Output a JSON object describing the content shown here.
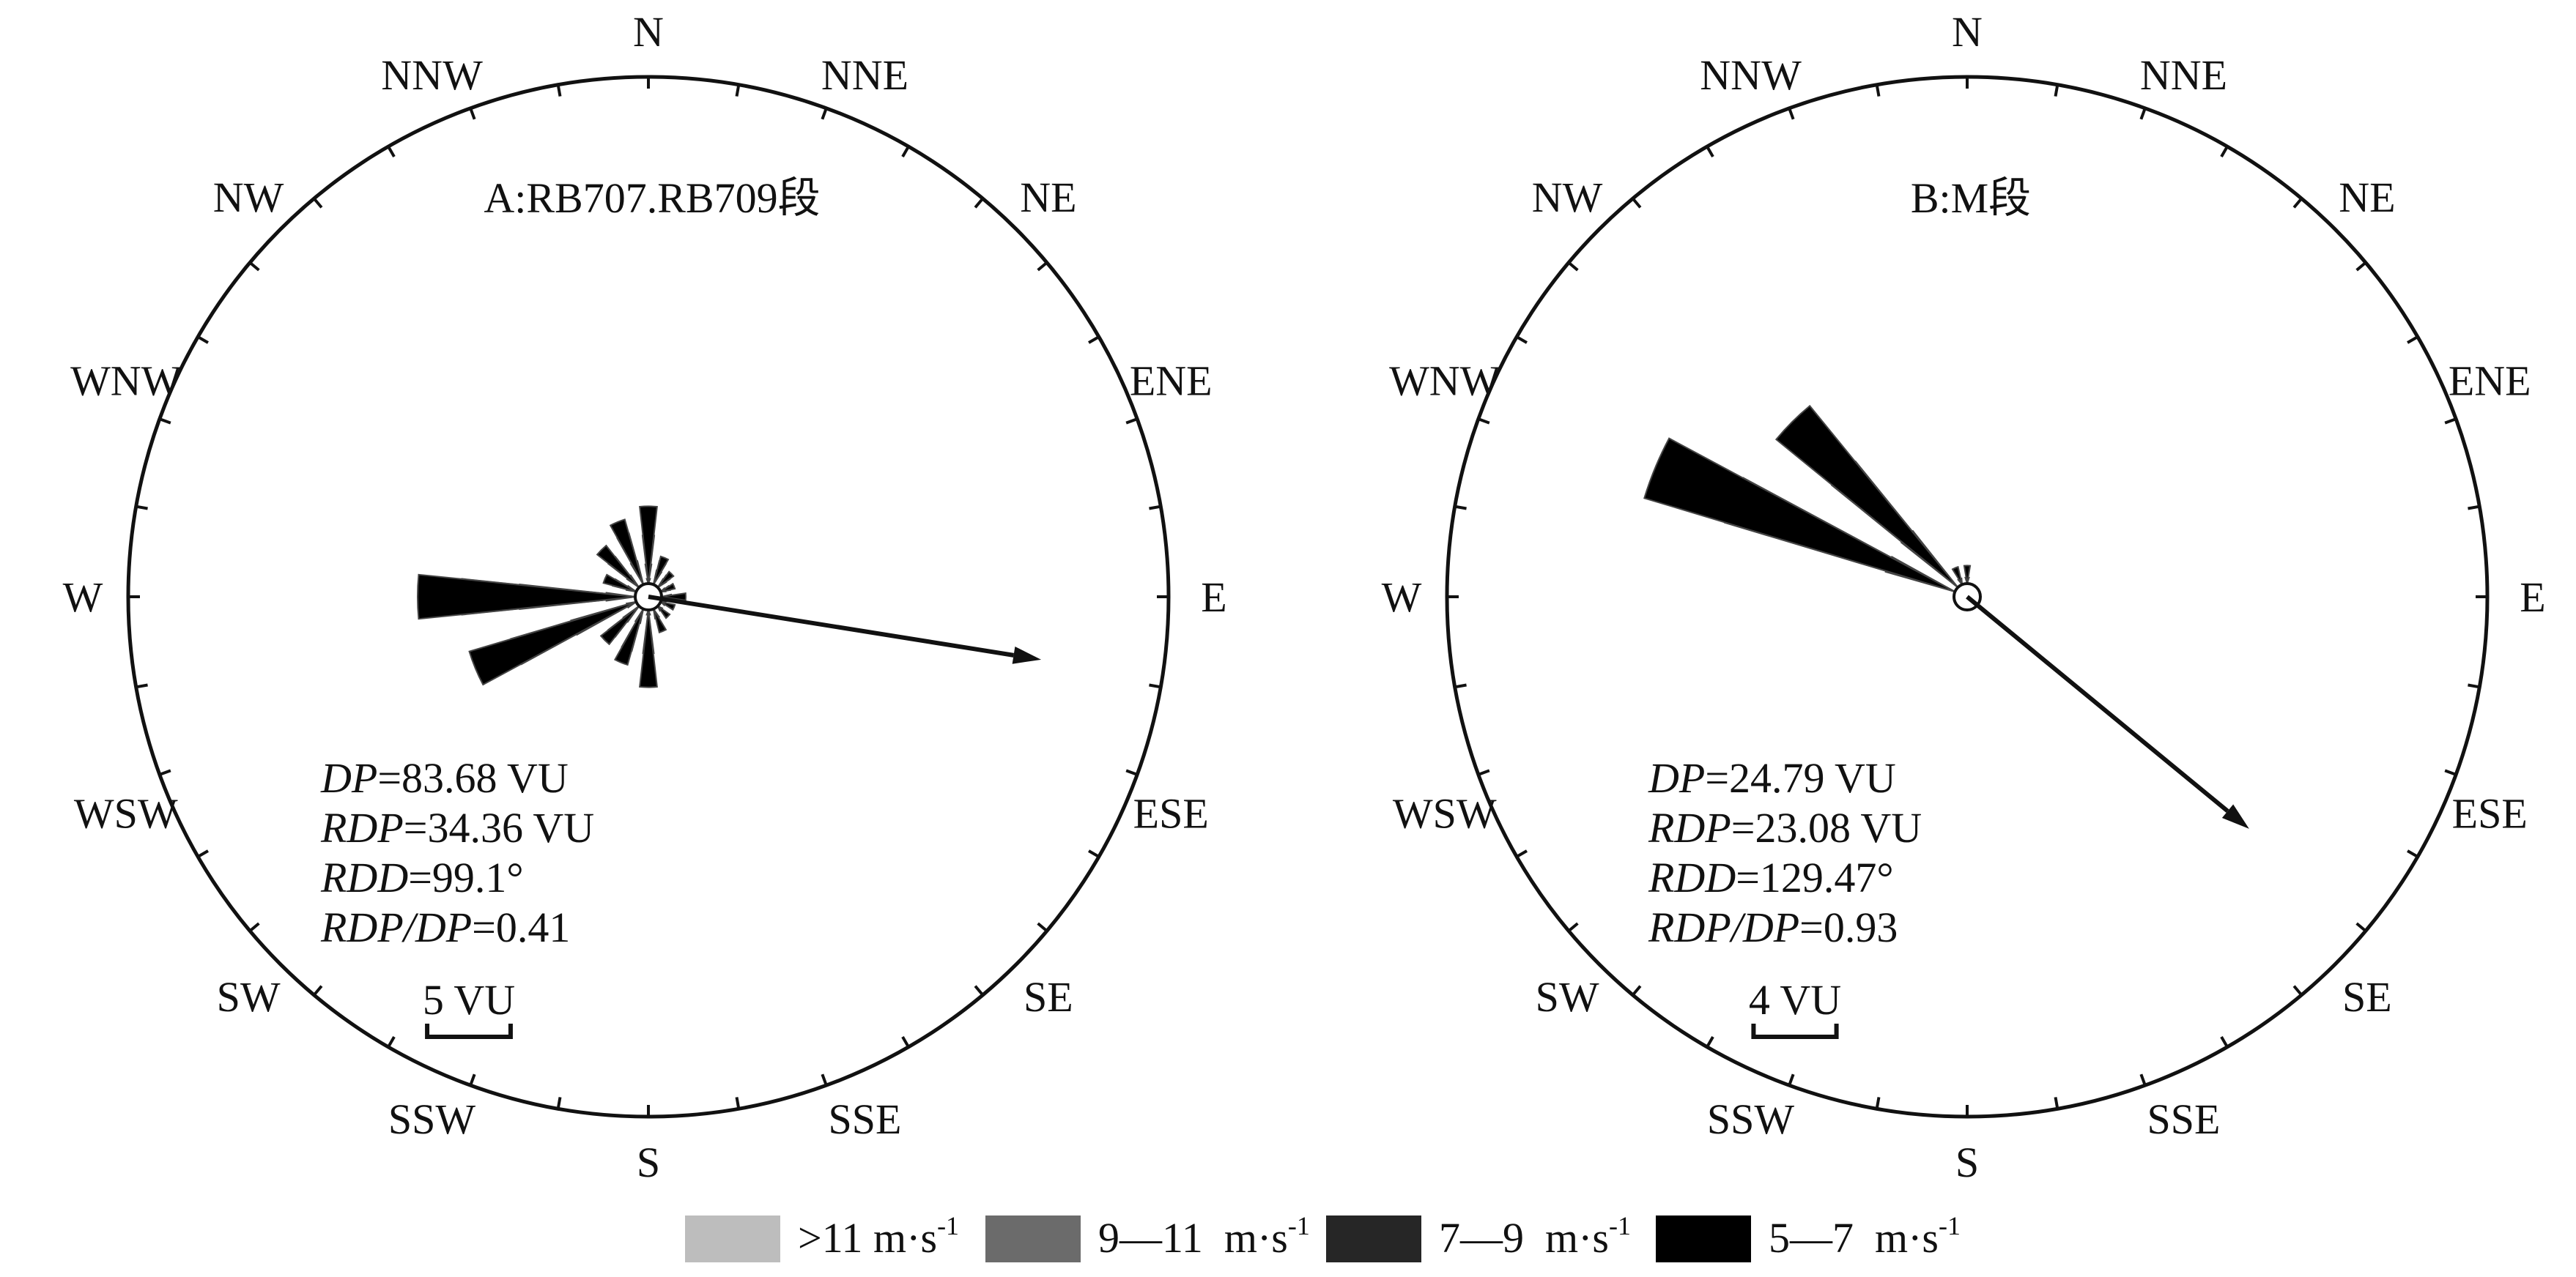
{
  "chart_data": [
    {
      "type": "wind-rose",
      "title": "A:RB707.RB709段",
      "directions": [
        "N",
        "NNE",
        "NE",
        "ENE",
        "E",
        "ESE",
        "SE",
        "SSE",
        "S",
        "SSW",
        "SW",
        "WSW",
        "W",
        "WNW",
        "NW",
        "NNW"
      ],
      "sectors_deg": [
        0,
        22.5,
        45,
        67.5,
        90,
        112.5,
        135,
        157.5,
        180,
        202.5,
        225,
        247.5,
        270,
        292.5,
        315,
        337.5
      ],
      "units": "VU",
      "series": [
        {
          "name": ">11 m·s-1",
          "color": "#bdbdbd",
          "values": [
            0.1,
            0,
            0,
            0,
            0,
            0,
            0,
            0,
            0,
            0,
            0,
            0.2,
            0.6,
            0,
            0,
            0
          ]
        },
        {
          "name": "9—11 m·s-1",
          "color": "#6b6b6b",
          "values": [
            0.4,
            0.3,
            0.2,
            0.1,
            0,
            0,
            0,
            0,
            0.1,
            0.3,
            0.4,
            1.4,
            2.4,
            0.2,
            0.3,
            0.5
          ]
        },
        {
          "name": "7—9 m·s-1",
          "color": "#262626",
          "values": [
            1.0,
            0.5,
            0.3,
            0.2,
            0.2,
            0.1,
            0.1,
            0.2,
            0.9,
            0.9,
            0.8,
            2.7,
            3.6,
            0.5,
            0.8,
            1.1
          ]
        },
        {
          "name": "5—7 m·s-1",
          "color": "#000000",
          "values": [
            1.6,
            0.6,
            0.4,
            0.3,
            0.5,
            0.3,
            0.3,
            0.5,
            1.6,
            1.2,
            1.0,
            3.6,
            4.5,
            0.7,
            1.1,
            1.4
          ]
        }
      ],
      "scale_bar": {
        "label": "5 VU",
        "value": 5
      },
      "resultant": {
        "direction_deg": 99.1,
        "magnitude": 34.36
      },
      "stats": [
        {
          "key": "DP",
          "value": "=83.68 VU"
        },
        {
          "key": "RDP",
          "value": "=34.36 VU"
        },
        {
          "key": "RDD",
          "value": "=99.1°"
        },
        {
          "key": "RDP/DP",
          "value": "=0.41"
        }
      ]
    },
    {
      "type": "wind-rose",
      "title": "B:M段",
      "directions": [
        "N",
        "NNE",
        "NE",
        "ENE",
        "E",
        "ESE",
        "SE",
        "SSE",
        "S",
        "SSW",
        "SW",
        "WSW",
        "W",
        "WNW",
        "NW",
        "NNW"
      ],
      "sectors_deg": [
        0,
        22.5,
        45,
        67.5,
        90,
        112.5,
        135,
        157.5,
        180,
        202.5,
        225,
        247.5,
        270,
        292.5,
        315,
        337.5
      ],
      "units": "VU",
      "series": [
        {
          "name": ">11 m·s-1",
          "color": "#bdbdbd",
          "values": [
            0,
            0,
            0,
            0,
            0,
            0,
            0,
            0,
            0,
            0,
            0,
            0,
            0,
            0,
            0,
            0
          ]
        },
        {
          "name": "9—11 m·s-1",
          "color": "#6b6b6b",
          "values": [
            0,
            0,
            0,
            0,
            0,
            0,
            0,
            0,
            0,
            0,
            0,
            0,
            0,
            1.2,
            1.2,
            0
          ]
        },
        {
          "name": "7—9 m·s-1",
          "color": "#262626",
          "values": [
            0.1,
            0,
            0,
            0,
            0,
            0,
            0,
            0,
            0,
            0,
            0,
            0,
            0,
            4.0,
            2.7,
            0.1
          ]
        },
        {
          "name": "5—7 m·s-1",
          "color": "#000000",
          "values": [
            0.3,
            0,
            0,
            0,
            0,
            0,
            0,
            0,
            0,
            0,
            0,
            0,
            0,
            5.4,
            3.9,
            0.3
          ]
        }
      ],
      "scale_bar": {
        "label": "4 VU",
        "value": 4
      },
      "resultant": {
        "direction_deg": 129.47,
        "magnitude": 23.08
      },
      "stats": [
        {
          "key": "DP",
          "value": "=24.79 VU"
        },
        {
          "key": "RDP",
          "value": "=23.08 VU"
        },
        {
          "key": "RDD",
          "value": "=129.47°"
        },
        {
          "key": "RDP/DP",
          "value": "=0.93"
        }
      ]
    }
  ],
  "legend": [
    {
      "label": ">11 m·s",
      "sup": "-1",
      "color": "#bdbdbd"
    },
    {
      "label": "9—11  m·s",
      "sup": "-1",
      "color": "#6b6b6b"
    },
    {
      "label": "7—9  m·s",
      "sup": "-1",
      "color": "#262626"
    },
    {
      "label": "5—7  m·s",
      "sup": "-1",
      "color": "#000000"
    }
  ]
}
